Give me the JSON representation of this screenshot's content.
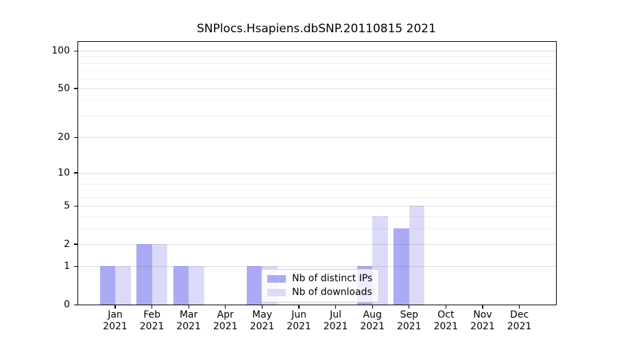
{
  "figure": {
    "background": "#ffffff"
  },
  "chart_data": {
    "type": "bar",
    "title": "SNPlocs.Hsapiens.dbSNP.20110815 2021",
    "categories": [
      "Jan",
      "Feb",
      "Mar",
      "Apr",
      "May",
      "Jun",
      "Jul",
      "Aug",
      "Sep",
      "Oct",
      "Nov",
      "Dec"
    ],
    "year_label": "2021",
    "series": [
      {
        "name": "Nb of distinct IPs",
        "color": "#a9a9f4",
        "values": [
          1,
          2,
          1,
          0,
          1,
          0,
          0,
          1,
          3,
          0,
          0,
          0
        ]
      },
      {
        "name": "Nb of downloads",
        "color": "#dbdbf9",
        "values": [
          1,
          2,
          1,
          0,
          1,
          0,
          0,
          4,
          5,
          0,
          0,
          0
        ]
      }
    ],
    "xlabel": "",
    "ylabel": "",
    "yscale": "log1p",
    "ylim": [
      0,
      118
    ],
    "yticks": [
      0,
      1,
      2,
      5,
      10,
      20,
      50,
      100
    ],
    "yticks_minor": [
      3,
      4,
      6,
      7,
      8,
      9,
      30,
      40,
      60,
      70,
      80,
      90
    ],
    "grid": "horizontal, major and minor, drawn over bars",
    "legend": {
      "position": "inside lower-center-left",
      "frame": true
    }
  },
  "colors": {
    "axis": "#000000",
    "grid_major": "rgba(0,0,0,0.13)",
    "grid_minor": "rgba(0,0,0,0.05)",
    "legend_border": "#cccccc",
    "legend_background": "rgba(255,255,255,0.8)"
  }
}
